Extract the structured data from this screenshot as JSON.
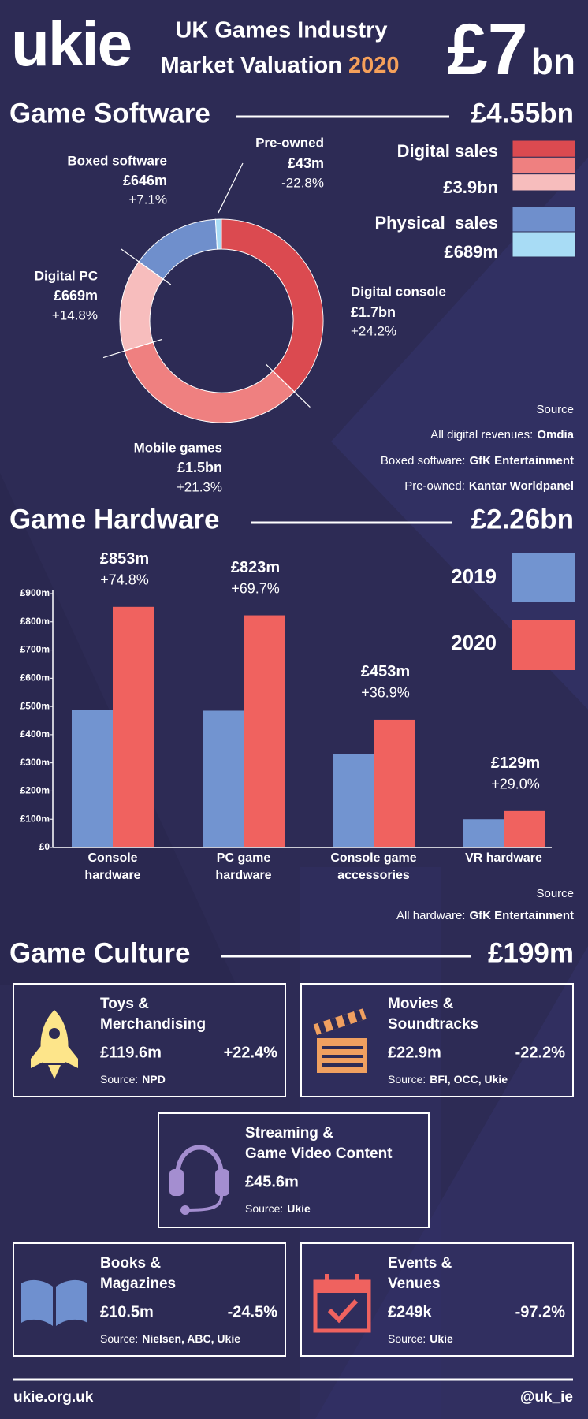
{
  "header": {
    "logo": "ukie",
    "title_lines": [
      "UK Games Industry",
      "Market Valuation"
    ],
    "year": "2020",
    "total": "£7",
    "total_unit": "bn"
  },
  "software": {
    "title": "Game Software",
    "total": "£4.55bn",
    "legend": [
      {
        "name": "Digital sales",
        "total": "£3.9bn"
      },
      {
        "name": "Physical  sales",
        "total": "£689m"
      }
    ],
    "source": {
      "title": "Source",
      "lines": [
        {
          "label": "All digital revenues:",
          "value": "Omdia"
        },
        {
          "label": "Boxed software:",
          "value": "GfK Entertainment"
        },
        {
          "label": "Pre-owned:",
          "value": "Kantar Worldpanel"
        }
      ]
    }
  },
  "hardware": {
    "title": "Game Hardware",
    "total": "£2.26bn",
    "source": {
      "title": "Source",
      "lines": [
        {
          "label": "All hardware:",
          "value": "GfK Entertainment"
        }
      ]
    }
  },
  "culture": {
    "title": "Game Culture",
    "total": "£199m",
    "cards": [
      {
        "title_lines": [
          "Toys &",
          "Merchandising"
        ],
        "value": "£119.6m",
        "change": "+22.4%",
        "source_label": "Source:",
        "source": "NPD"
      },
      {
        "title_lines": [
          "Movies &",
          "Soundtracks"
        ],
        "value": "£22.9m",
        "change": "-22.2%",
        "source_label": "Source:",
        "source": "BFI, OCC, Ukie"
      },
      {
        "title_lines": [
          "Streaming &",
          "Game Video Content"
        ],
        "value": "£45.6m",
        "source_label": "Source:",
        "source": "Ukie"
      },
      {
        "title_lines": [
          "Books &",
          "Magazines"
        ],
        "value": "£10.5m",
        "change": "-24.5%",
        "source_label": "Source:",
        "source": "Nielsen, ABC, Ukie"
      },
      {
        "title_lines": [
          "Events &",
          "Venues"
        ],
        "value": "£249k",
        "change": "-97.2%",
        "source_label": "Source:",
        "source": "Ukie"
      }
    ]
  },
  "footer": {
    "left": "ukie.org.uk",
    "right": "@uk_ie"
  },
  "chart_data": [
    {
      "type": "donut",
      "categories": [
        "Digital console",
        "Mobile games",
        "Digital PC",
        "Boxed software",
        "Pre-owned"
      ],
      "values": [
        1700,
        1500,
        669,
        646,
        43
      ],
      "value_labels": [
        "£1.7bn",
        "£1.5bn",
        "£669m",
        "£646m",
        "£43m"
      ],
      "change_labels": [
        "+24.2%",
        "+21.3%",
        "+14.8%",
        "+7.1%",
        "-22.8%"
      ],
      "colors": [
        "#db4a50",
        "#ef8080",
        "#f7bdbd",
        "#6f8fcc",
        "#a8dcf5"
      ]
    },
    {
      "type": "bar",
      "categories": [
        "Console hardware",
        "PC game hardware",
        "Console game accessories",
        "VR hardware"
      ],
      "series": [
        {
          "name": "2019",
          "color": "#7294d0",
          "values": [
            488,
            485,
            331,
            100
          ]
        },
        {
          "name": "2020",
          "color": "#f0625f",
          "values": [
            853,
            823,
            453,
            129
          ],
          "value_labels": [
            "£853m",
            "£823m",
            "£453m",
            "£129m"
          ],
          "change_labels": [
            "+74.8%",
            "+69.7%",
            "+36.9%",
            "+29.0%"
          ]
        }
      ],
      "ylim": [
        0,
        900
      ],
      "yticks": [
        {
          "value": 0,
          "label": "£0"
        },
        {
          "value": 100,
          "label": "£100m"
        },
        {
          "value": 200,
          "label": "£200m"
        },
        {
          "value": 300,
          "label": "£300m"
        },
        {
          "value": 400,
          "label": "£400m"
        },
        {
          "value": 500,
          "label": "£500m"
        },
        {
          "value": 600,
          "label": "£600m"
        },
        {
          "value": 700,
          "label": "£700m"
        },
        {
          "value": 800,
          "label": "£800m"
        },
        {
          "value": 900,
          "label": "£900m"
        }
      ]
    }
  ]
}
